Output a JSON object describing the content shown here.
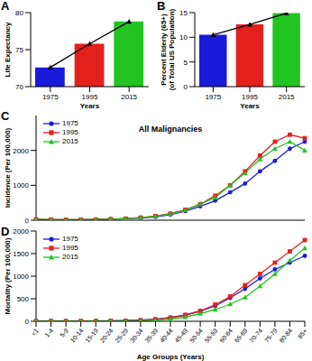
{
  "chart_data": [
    {
      "panel": "A",
      "type": "bar",
      "categories": [
        "1975",
        "1995",
        "2015"
      ],
      "xlabel": "Years",
      "ylabel": "Life Expectancy",
      "ylim": [
        70,
        80
      ],
      "yticks": [
        70,
        75,
        80
      ],
      "series": [
        {
          "type": "bar",
          "colors": [
            "#1a1adb",
            "#e3211c",
            "#22c422"
          ],
          "values": [
            72.6,
            75.8,
            78.8
          ]
        },
        {
          "type": "line",
          "color": "#000000",
          "marker": "triangle",
          "values": [
            72.6,
            75.8,
            78.8
          ]
        }
      ]
    },
    {
      "panel": "B",
      "type": "bar",
      "categories": [
        "1975",
        "1995",
        "2015"
      ],
      "xlabel": "Years",
      "ylabel": [
        "Percent Elderly (65+)",
        "(of Total US Population)"
      ],
      "ylim": [
        0,
        15
      ],
      "yticks": [
        0,
        5,
        10,
        15
      ],
      "series": [
        {
          "type": "bar",
          "colors": [
            "#1a1adb",
            "#e3211c",
            "#22c422"
          ],
          "values": [
            10.5,
            12.6,
            14.9
          ]
        },
        {
          "type": "line",
          "color": "#000000",
          "marker": "triangle",
          "values": [
            10.5,
            12.6,
            14.9
          ]
        }
      ]
    },
    {
      "panel": "C",
      "type": "line",
      "title": "All Malignancies",
      "categories": [
        "<1",
        "1-4",
        "5-9",
        "10-14",
        "15-19",
        "20-24",
        "25-29",
        "30-34",
        "35-39",
        "40-44",
        "45-49",
        "50-54",
        "55-59",
        "60-64",
        "65-69",
        "70-74",
        "75-79",
        "80-84",
        "85+"
      ],
      "ylabel": "Incidence (Per 100,000)",
      "ylim": [
        0,
        3000
      ],
      "yticks": [
        0,
        1000,
        2000
      ],
      "tick_labels": "y",
      "legend": "upper left",
      "series": [
        {
          "name": "1975",
          "color": "#1a1adb",
          "marker": "circle",
          "values": [
            20,
            15,
            12,
            13,
            18,
            28,
            40,
            60,
            95,
            160,
            260,
            400,
            560,
            800,
            1050,
            1400,
            1700,
            2050,
            2250
          ]
        },
        {
          "name": "1995",
          "color": "#e3211c",
          "marker": "square",
          "values": [
            22,
            18,
            13,
            15,
            20,
            30,
            45,
            75,
            120,
            190,
            300,
            460,
            700,
            1000,
            1400,
            1850,
            2250,
            2450,
            2350
          ]
        },
        {
          "name": "2015",
          "color": "#22c422",
          "marker": "triangle",
          "values": [
            20,
            18,
            14,
            16,
            22,
            30,
            48,
            75,
            115,
            180,
            290,
            460,
            650,
            1000,
            1350,
            1750,
            2050,
            2250,
            2000
          ]
        }
      ]
    },
    {
      "panel": "D",
      "type": "line",
      "categories": [
        "<1",
        "1-4",
        "5-9",
        "10-14",
        "15-19",
        "20-24",
        "25-29",
        "30-34",
        "35-39",
        "40-44",
        "45-49",
        "50-54",
        "55-59",
        "60-64",
        "65-69",
        "70-74",
        "75-79",
        "80-84",
        "85+"
      ],
      "xlabel": "Age Groups (Years)",
      "ylabel": "Mortality (Per 100,000)",
      "ylim": [
        0,
        2000
      ],
      "yticks": [
        0,
        500,
        1000,
        1500,
        2000
      ],
      "legend": "upper left",
      "series": [
        {
          "name": "1975",
          "color": "#1a1adb",
          "marker": "circle",
          "values": [
            5,
            5,
            5,
            5,
            7,
            10,
            15,
            25,
            45,
            80,
            140,
            220,
            340,
            520,
            720,
            950,
            1150,
            1300,
            1450
          ]
        },
        {
          "name": "1995",
          "color": "#e3211c",
          "marker": "square",
          "values": [
            3,
            3,
            3,
            4,
            5,
            7,
            10,
            20,
            40,
            80,
            140,
            230,
            370,
            550,
            800,
            1050,
            1300,
            1550,
            1800
          ]
        },
        {
          "name": "2015",
          "color": "#22c422",
          "marker": "triangle",
          "values": [
            2,
            2,
            2,
            2,
            3,
            5,
            7,
            12,
            25,
            50,
            95,
            170,
            260,
            380,
            530,
            780,
            1050,
            1350,
            1620
          ]
        }
      ]
    }
  ]
}
